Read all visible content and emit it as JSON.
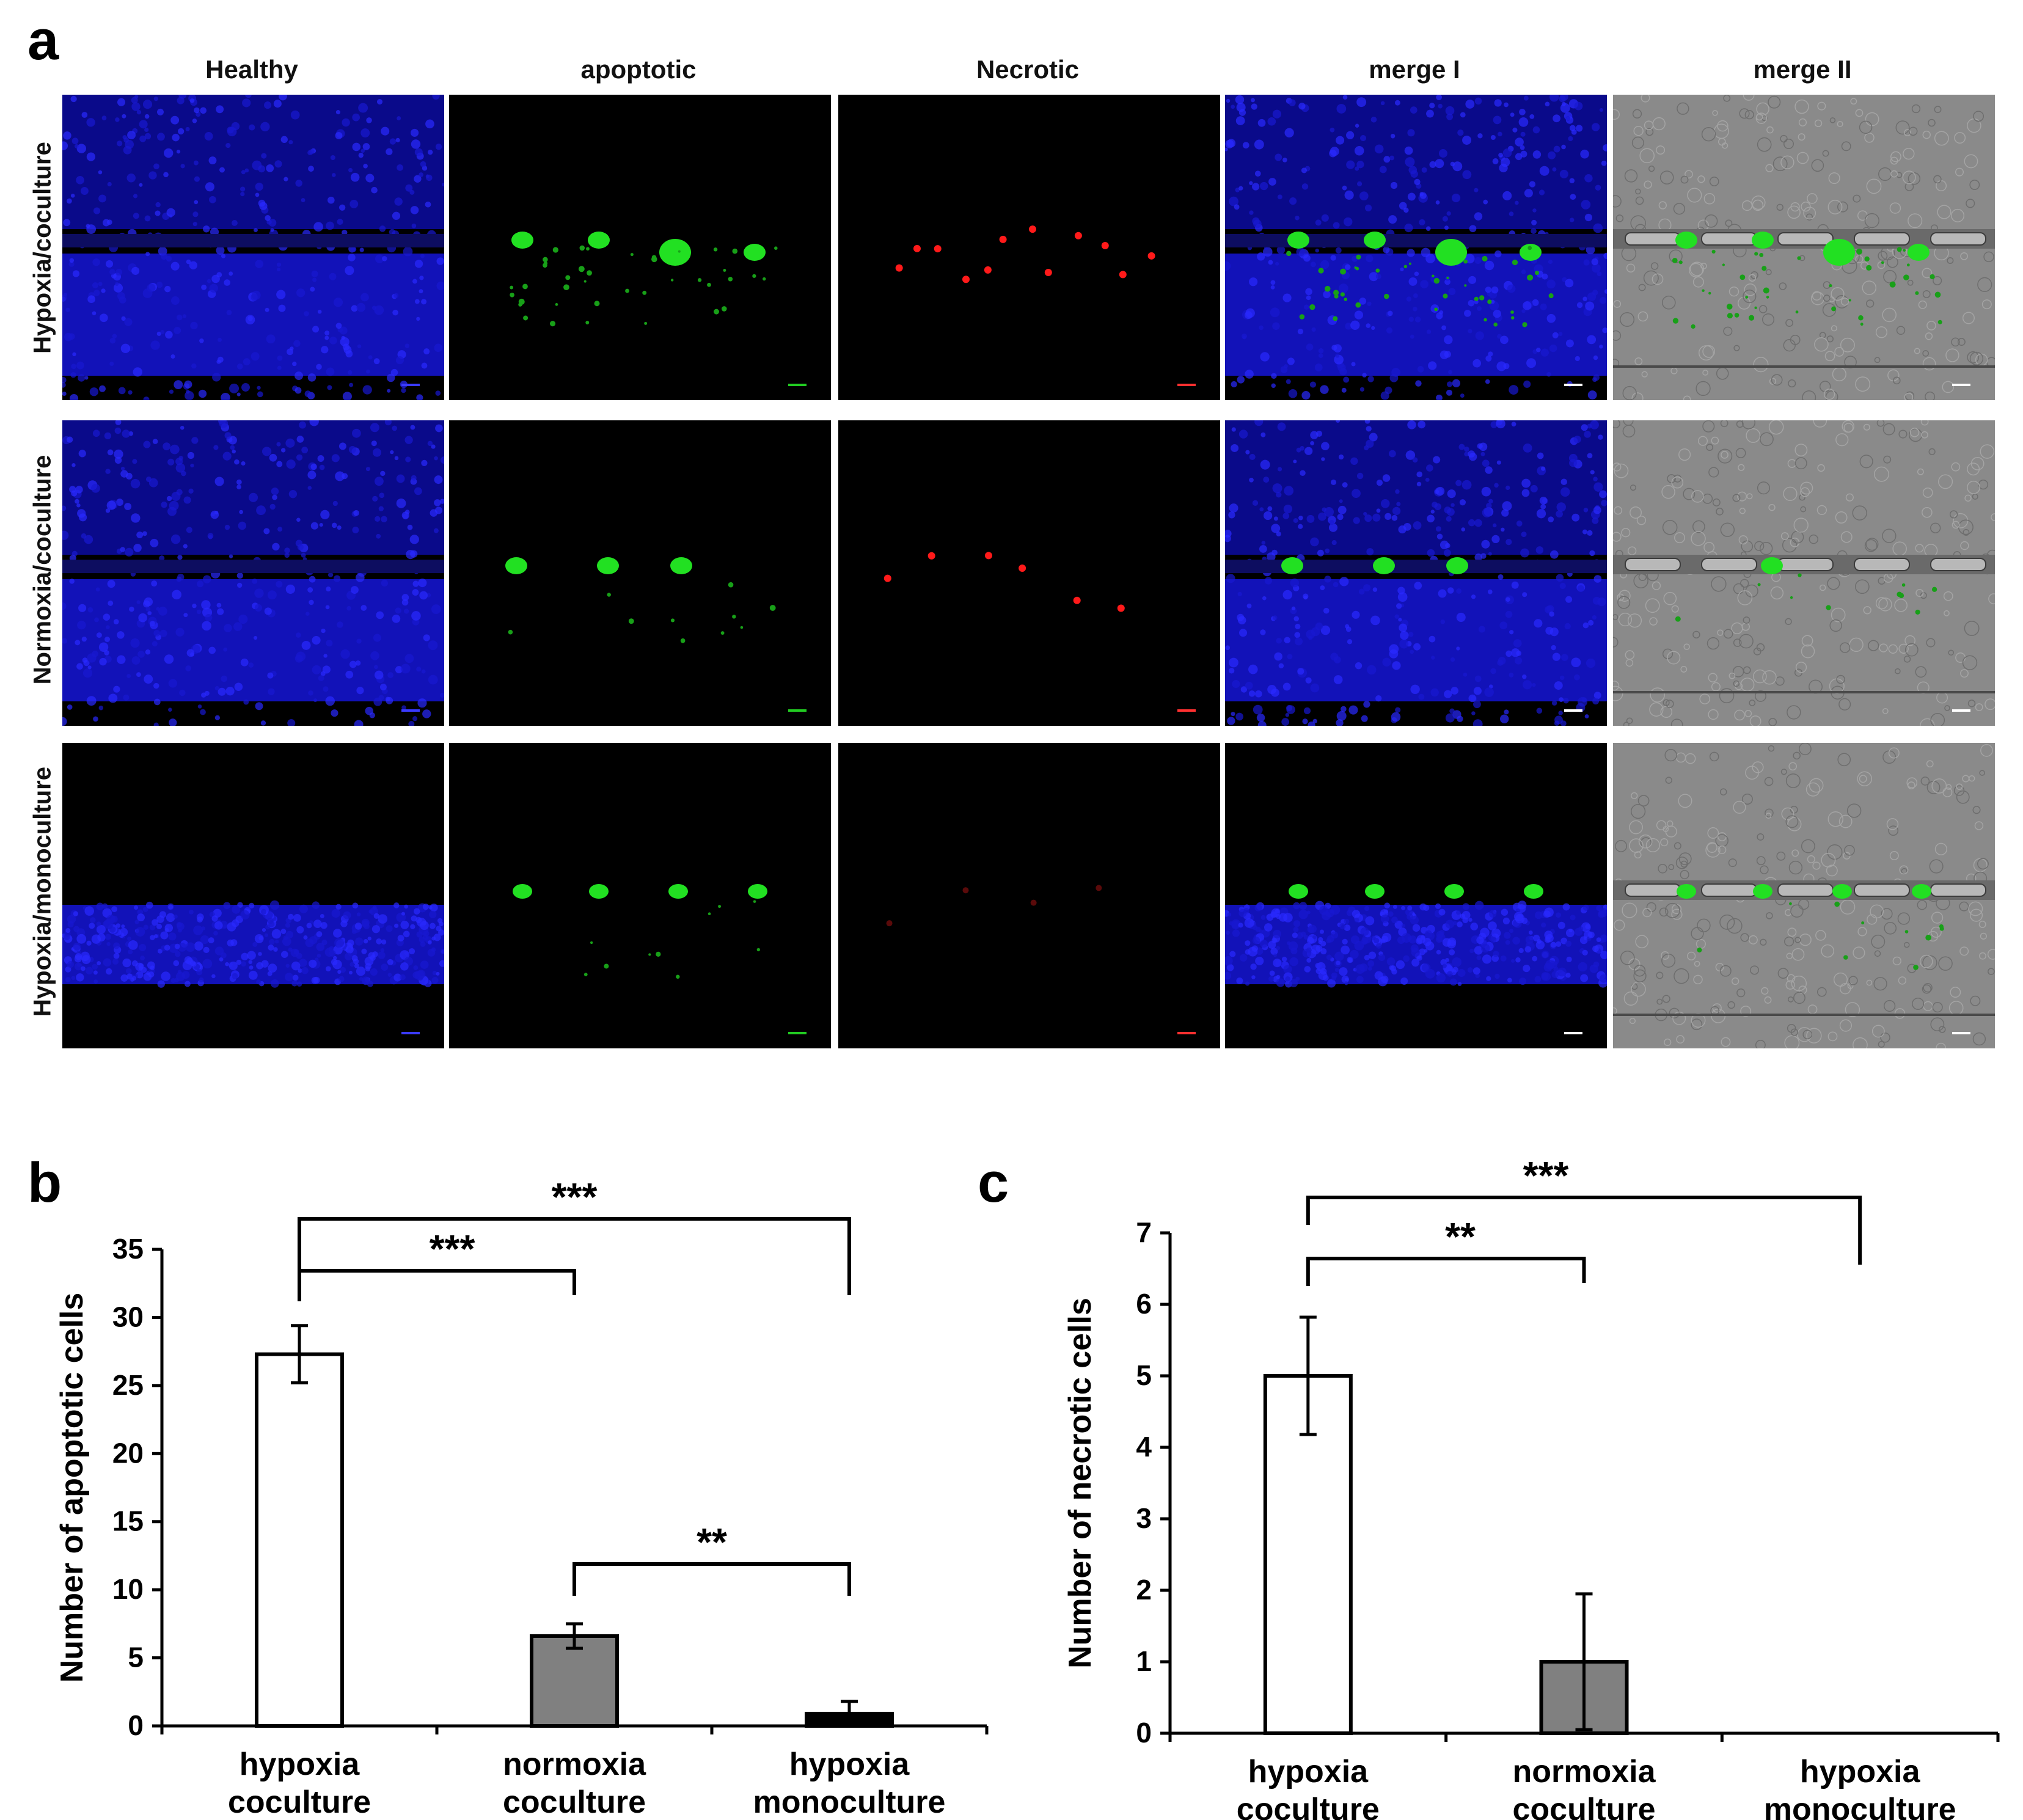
{
  "panel_a": {
    "letter": "a",
    "column_headers": [
      "Healthy",
      "apoptotic",
      "Necrotic",
      "merge I",
      "merge II"
    ],
    "row_labels": [
      "Hypoxia/coculture",
      "Normoxia/coculture",
      "Hypoxia/monoculture"
    ]
  },
  "panel_b": {
    "letter": "b"
  },
  "panel_c": {
    "letter": "c"
  },
  "chart_data": [
    {
      "type": "bar",
      "categories": [
        "hypoxia\ncoculture",
        "normoxia\ncoculture",
        "hypoxia\nmonoculture"
      ],
      "values": [
        27.3,
        6.6,
        0.9
      ],
      "errors": [
        2.1,
        0.9,
        0.9
      ],
      "bar_colors": [
        "#ffffff",
        "#808080",
        "#000000"
      ],
      "ylabel": "Number of apoptotic cells",
      "ylim": [
        0,
        35
      ],
      "yticks": [
        0,
        5,
        10,
        15,
        20,
        25,
        30,
        35
      ],
      "significance": [
        {
          "from": 0,
          "to": 1,
          "label": "***"
        },
        {
          "from": 0,
          "to": 2,
          "label": "***"
        },
        {
          "from": 1,
          "to": 2,
          "label": "**"
        }
      ],
      "grid": false
    },
    {
      "type": "bar",
      "categories": [
        "hypoxia\ncoculture",
        "normoxia\ncoculture",
        "hypoxia\nmonoculture"
      ],
      "values": [
        5.0,
        1.0,
        0
      ],
      "errors": [
        0.82,
        0.95,
        0
      ],
      "bar_colors": [
        "#ffffff",
        "#808080",
        "#000000"
      ],
      "ylabel": "Number of necrotic cells",
      "ylim": [
        0,
        7
      ],
      "yticks": [
        0,
        1,
        2,
        3,
        4,
        5,
        6,
        7
      ],
      "significance": [
        {
          "from": 0,
          "to": 1,
          "label": "**"
        },
        {
          "from": 0,
          "to": 2,
          "label": "***"
        }
      ],
      "grid": false
    }
  ]
}
